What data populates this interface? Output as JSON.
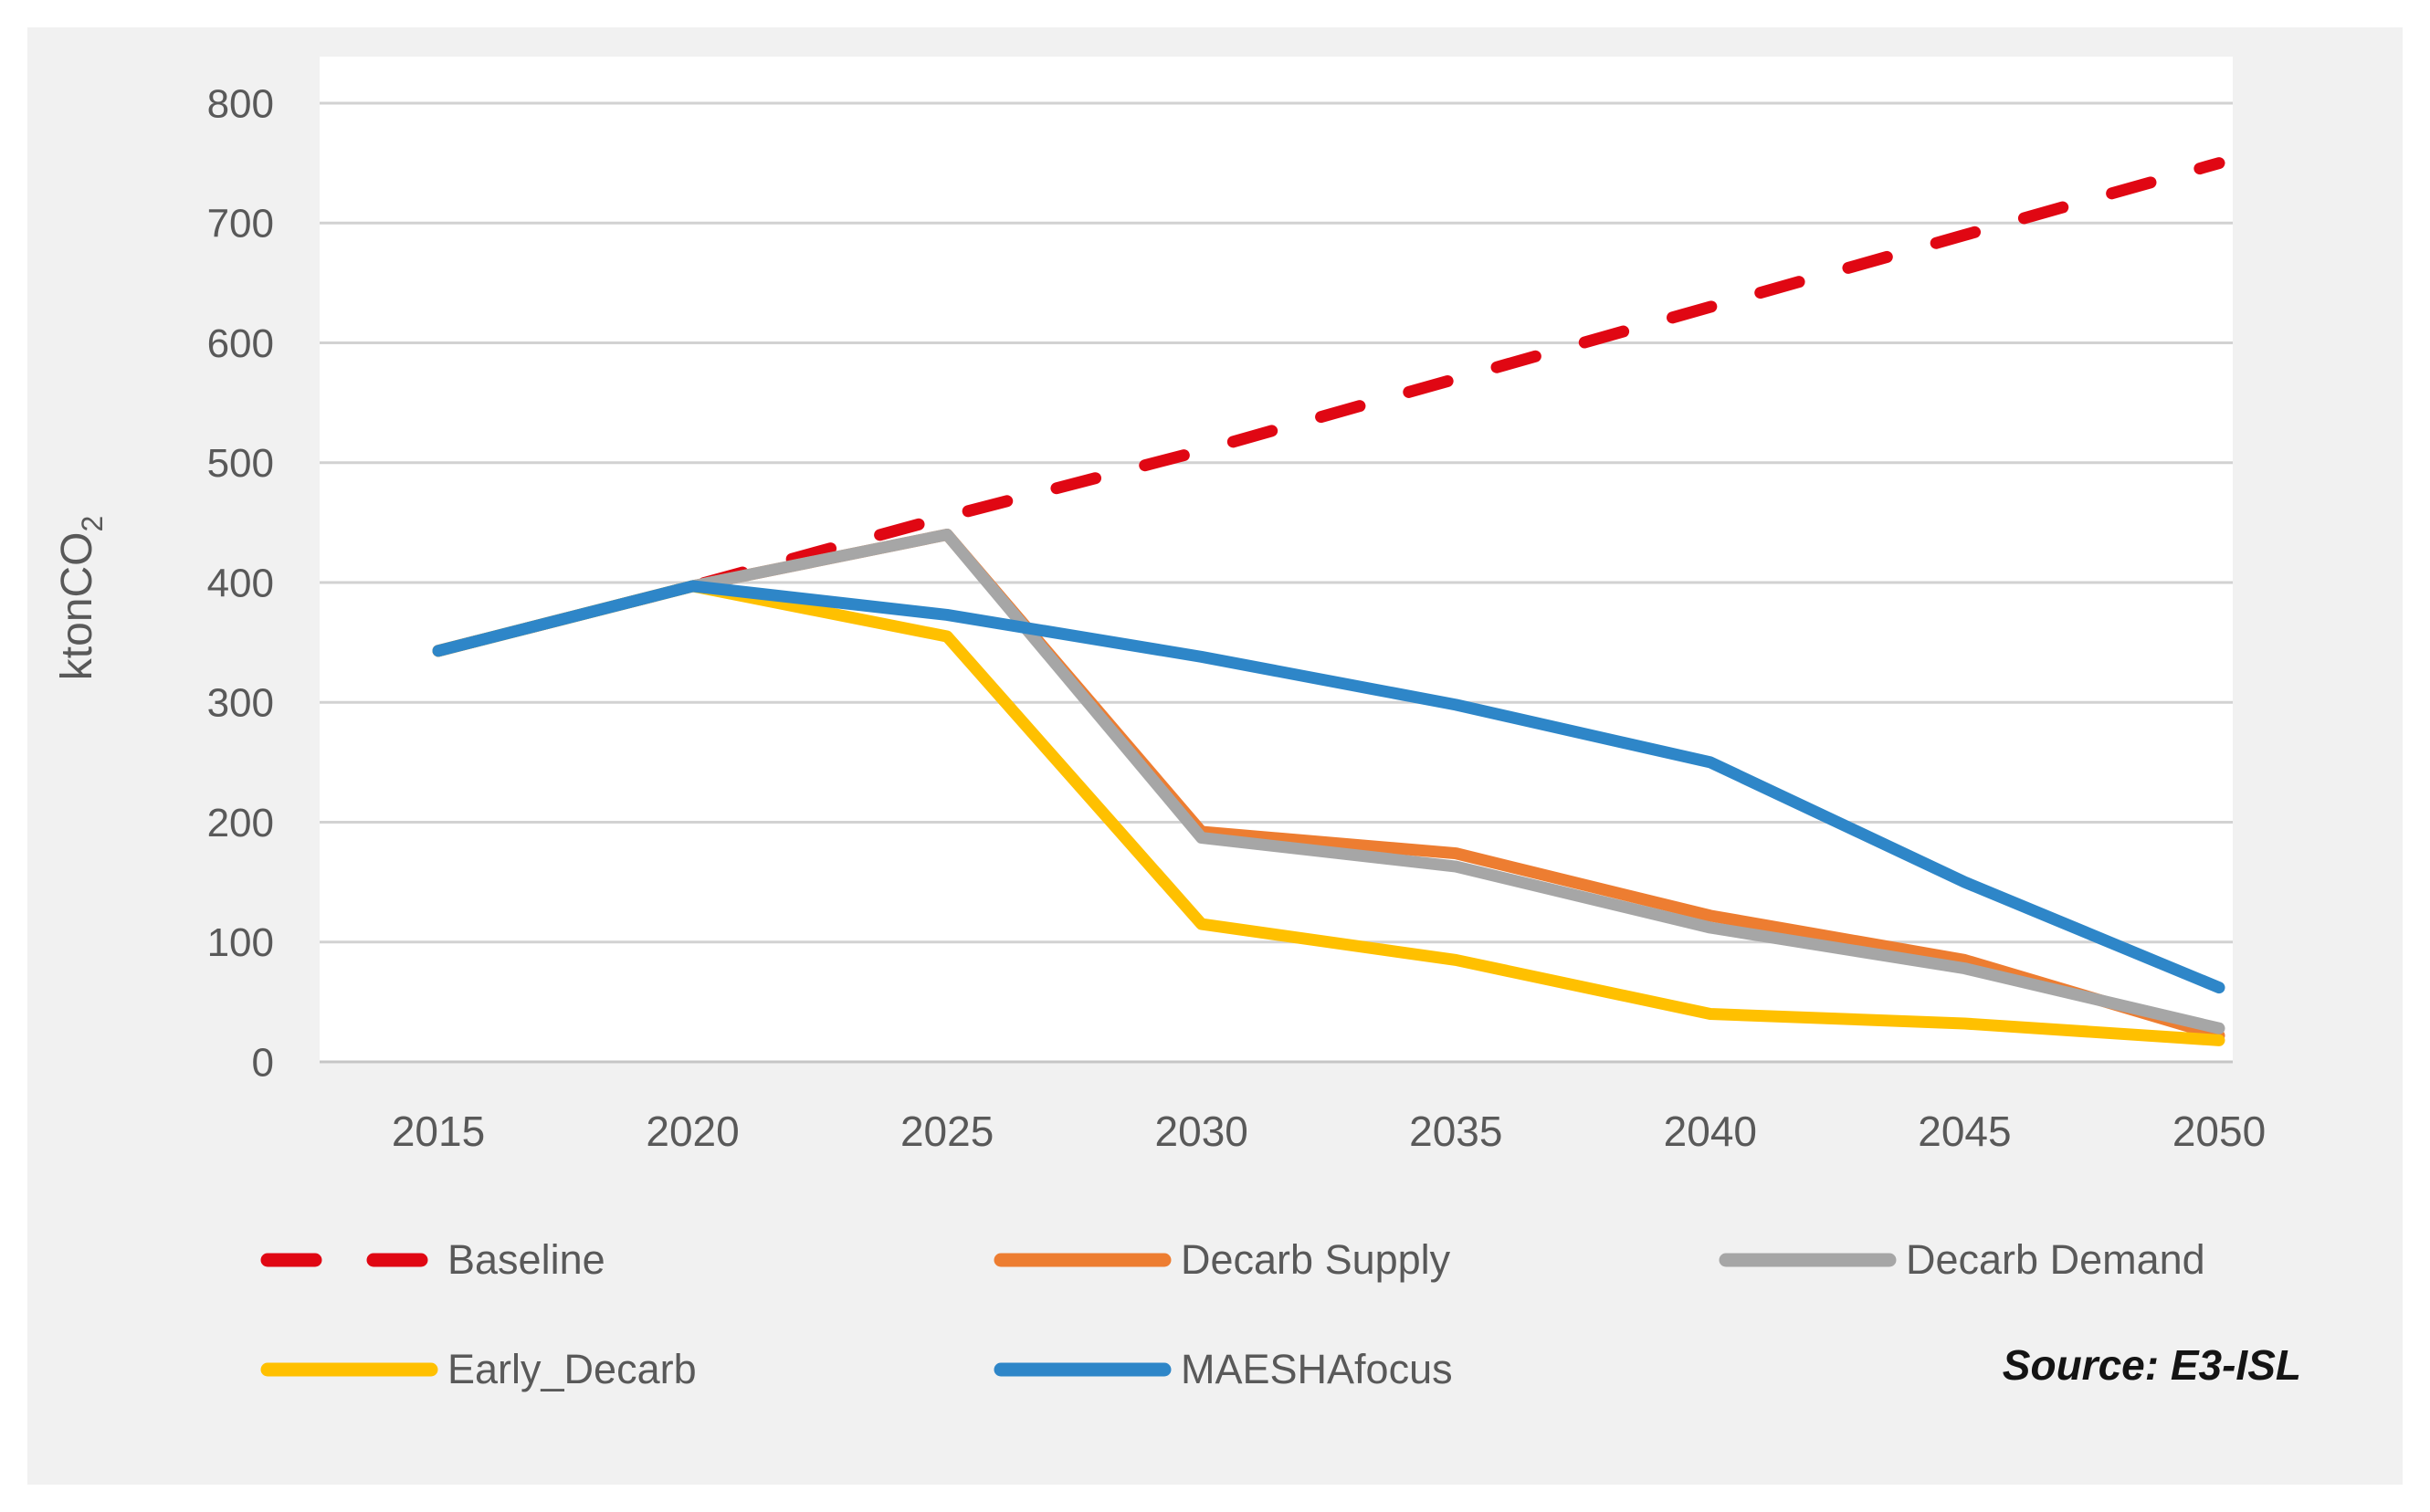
{
  "y_axis": {
    "label_main": "ktonCO",
    "label_sub": "2",
    "ticks": [
      "800",
      "700",
      "600",
      "500",
      "400",
      "300",
      "200",
      "100",
      "0"
    ]
  },
  "x_axis": {
    "years": [
      "2015",
      "2020",
      "2025",
      "2030",
      "2035",
      "2040",
      "2045",
      "2050"
    ]
  },
  "legend": {
    "items": [
      {
        "label": "Baseline",
        "color": "#e00713",
        "style": "dashed"
      },
      {
        "label": "Decarb Supply",
        "color": "#ed7d31",
        "style": "solid"
      },
      {
        "label": "Decarb Demand",
        "color": "#a6a6a6",
        "style": "solid"
      },
      {
        "label": "Early_Decarb",
        "color": "#ffc000",
        "style": "solid"
      },
      {
        "label": "MAESHAfocus",
        "color": "#2e86c8",
        "style": "solid"
      }
    ]
  },
  "source_note": "Source: E3-ISL",
  "colors": {
    "panel_background": "#f1f1f1",
    "plot_background": "#ffffff",
    "gridline": "#d2d2d2",
    "axis_text": "#595959"
  },
  "chart_data": {
    "type": "line",
    "title": "",
    "xlabel": "",
    "ylabel": "ktonCO2",
    "x": [
      2015,
      2020,
      2025,
      2030,
      2035,
      2040,
      2045,
      2050
    ],
    "ylim": [
      0,
      800
    ],
    "y_tick_step": 100,
    "grid": "horizontal",
    "legend_position": "bottom",
    "series": [
      {
        "name": "Baseline",
        "color": "#e00713",
        "dashed": true,
        "values": [
          343,
          397,
          455,
          510,
          570,
          630,
          690,
          750
        ]
      },
      {
        "name": "Decarb Supply",
        "color": "#ed7d31",
        "dashed": false,
        "values": [
          343,
          397,
          440,
          192,
          174,
          122,
          85,
          22
        ]
      },
      {
        "name": "Decarb Demand",
        "color": "#a6a6a6",
        "dashed": false,
        "values": [
          343,
          397,
          440,
          187,
          163,
          112,
          78,
          28
        ]
      },
      {
        "name": "Early_Decarb",
        "color": "#ffc000",
        "dashed": false,
        "values": [
          343,
          397,
          355,
          115,
          85,
          40,
          32,
          18
        ]
      },
      {
        "name": "MAESHAfocus",
        "color": "#2e86c8",
        "dashed": false,
        "values": [
          343,
          397,
          373,
          338,
          298,
          250,
          150,
          62
        ]
      }
    ]
  }
}
